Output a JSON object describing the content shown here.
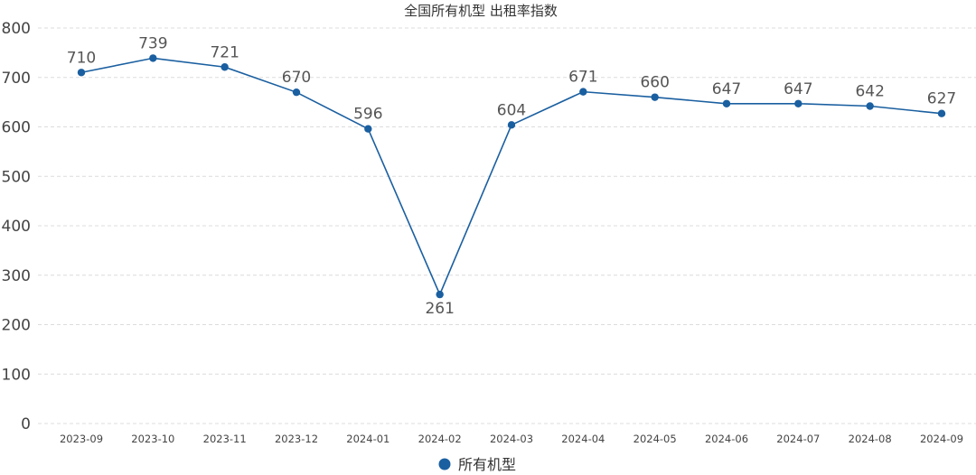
{
  "chart_data": {
    "type": "line",
    "title": "全国所有机型 出租率指数",
    "xlabel": "",
    "ylabel": "",
    "categories": [
      "2023-09",
      "2023-10",
      "2023-11",
      "2023-12",
      "2024-01",
      "2024-02",
      "2024-03",
      "2024-04",
      "2024-05",
      "2024-06",
      "2024-07",
      "2024-08",
      "2024-09"
    ],
    "ylim": [
      0,
      800
    ],
    "yticks": [
      0,
      100,
      200,
      300,
      400,
      500,
      600,
      700,
      800
    ],
    "grid": true,
    "legend_position": "bottom",
    "series": [
      {
        "name": "所有机型",
        "color": "#1a5fa0",
        "values": [
          710,
          739,
          721,
          670,
          596,
          261,
          604,
          671,
          660,
          647,
          647,
          642,
          627
        ]
      }
    ]
  }
}
